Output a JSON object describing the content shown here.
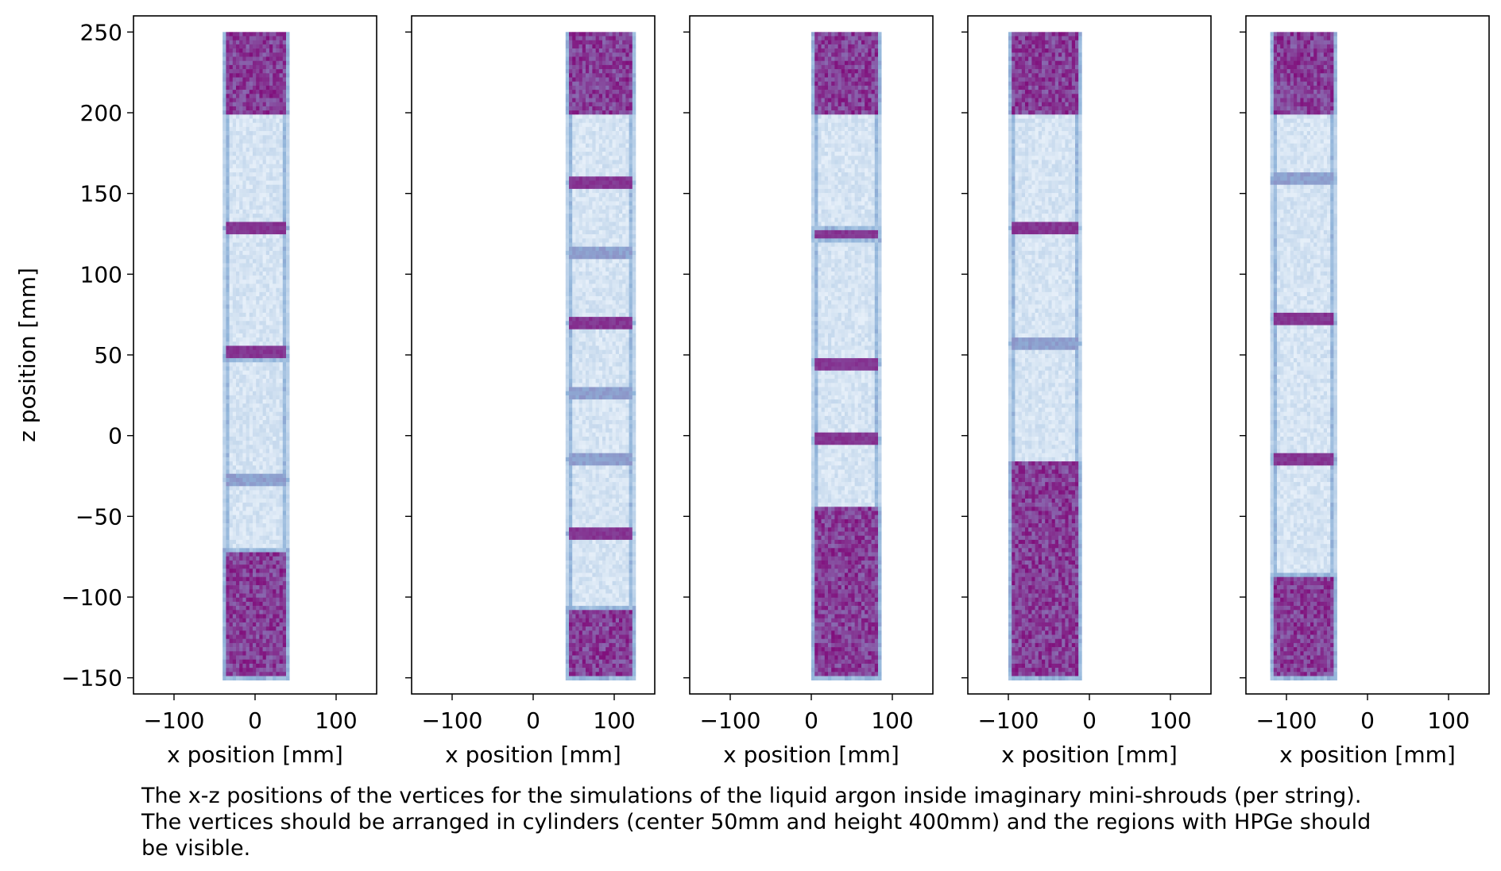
{
  "chart_data": {
    "type": "heatmap",
    "ylabel": "z position [mm]",
    "ylim": [
      -160,
      260
    ],
    "y_ticks": [
      250,
      200,
      150,
      100,
      50,
      0,
      -50,
      -100,
      -150
    ],
    "y_tick_labels": [
      "250",
      "200",
      "150",
      "100",
      "50",
      "0",
      "−50",
      "−100",
      "−150"
    ],
    "sharey": true,
    "colormap": {
      "low": "#f7fbff",
      "mid": "#8fb3d9",
      "high": "#810f7c"
    },
    "panels": [
      {
        "xlabel": "x position [mm]",
        "xlim": [
          -150,
          150
        ],
        "x_ticks": [
          -100,
          0,
          100
        ],
        "x_tick_labels": [
          "−100",
          "0",
          "100"
        ],
        "cylinder_x": [
          -40,
          40
        ],
        "z_range": [
          -150,
          250
        ],
        "dense_regions": [
          [
            200,
            250
          ],
          [
            -150,
            -72
          ]
        ],
        "hpge_regions": [
          [
            129,
            200
          ],
          [
            55,
            127
          ],
          [
            -27,
            46
          ],
          [
            -70,
            -29
          ]
        ],
        "bands": [
          {
            "z": 128,
            "strength": "strong"
          },
          {
            "z": 51,
            "strength": "strong"
          },
          {
            "z": -28,
            "strength": "weak"
          }
        ]
      },
      {
        "xlabel": "x position [mm]",
        "xlim": [
          -150,
          150
        ],
        "x_ticks": [
          -100,
          0,
          100
        ],
        "x_tick_labels": [
          "−100",
          "0",
          "100"
        ],
        "cylinder_x": [
          40,
          125
        ],
        "z_range": [
          -150,
          250
        ],
        "dense_regions": [
          [
            200,
            250
          ],
          [
            -150,
            -108
          ]
        ],
        "hpge_regions": [
          [
            158,
            200
          ],
          [
            115,
            156
          ],
          [
            70,
            112
          ],
          [
            28,
            68
          ],
          [
            -14,
            26
          ],
          [
            -60,
            -16
          ],
          [
            -106,
            -62
          ]
        ],
        "bands": [
          {
            "z": 157,
            "strength": "strong"
          },
          {
            "z": 113,
            "strength": "weak"
          },
          {
            "z": 69,
            "strength": "strong"
          },
          {
            "z": 27,
            "strength": "weak"
          },
          {
            "z": -15,
            "strength": "weak"
          },
          {
            "z": -61,
            "strength": "strong"
          }
        ]
      },
      {
        "xlabel": "x position [mm]",
        "xlim": [
          -150,
          150
        ],
        "x_ticks": [
          -100,
          0,
          100
        ],
        "x_tick_labels": [
          "−100",
          "0",
          "100"
        ],
        "cylinder_x": [
          0,
          85
        ],
        "z_range": [
          -150,
          250
        ],
        "dense_regions": [
          [
            200,
            250
          ],
          [
            -150,
            -45
          ]
        ],
        "hpge_regions": [
          [
            130,
            200
          ],
          [
            49,
            120
          ],
          [
            -1,
            42
          ],
          [
            -43,
            -6
          ]
        ],
        "bands": [
          {
            "z": 125,
            "strength": "strong"
          },
          {
            "z": 45,
            "strength": "strong"
          },
          {
            "z": -2,
            "strength": "strong"
          }
        ]
      },
      {
        "xlabel": "x position [mm]",
        "xlim": [
          -150,
          150
        ],
        "x_ticks": [
          -100,
          0,
          100
        ],
        "x_tick_labels": [
          "−100",
          "0",
          "100"
        ],
        "cylinder_x": [
          -100,
          -10
        ],
        "z_range": [
          -150,
          250
        ],
        "dense_regions": [
          [
            200,
            250
          ],
          [
            -150,
            -17
          ]
        ],
        "hpge_regions": [
          [
            130,
            200
          ],
          [
            58,
            126
          ],
          [
            -17,
            55
          ]
        ],
        "bands": [
          {
            "z": 128,
            "strength": "strong"
          },
          {
            "z": 57,
            "strength": "weak"
          }
        ]
      },
      {
        "xlabel": "x position [mm]",
        "xlim": [
          -150,
          150
        ],
        "x_ticks": [
          -100,
          0,
          100
        ],
        "x_tick_labels": [
          "−100",
          "0",
          "100"
        ],
        "cylinder_x": [
          -120,
          -40
        ],
        "z_range": [
          -150,
          250
        ],
        "dense_regions": [
          [
            200,
            250
          ],
          [
            -150,
            -87
          ]
        ],
        "hpge_regions": [
          [
            162,
            200
          ],
          [
            77,
            155
          ],
          [
            -10,
            69
          ],
          [
            -85,
            -18
          ]
        ],
        "bands": [
          {
            "z": 159,
            "strength": "weak"
          },
          {
            "z": 73,
            "strength": "strong"
          },
          {
            "z": -14,
            "strength": "strong"
          }
        ]
      }
    ]
  },
  "caption": {
    "line1": "The x-z positions of the vertices for the simulations of the liquid argon inside imaginary mini-shrouds (per string).",
    "line2": "The vertices should be arranged in cylinders (center 50mm and height 400mm) and the regions with HPGe should",
    "line3": "be visible."
  }
}
